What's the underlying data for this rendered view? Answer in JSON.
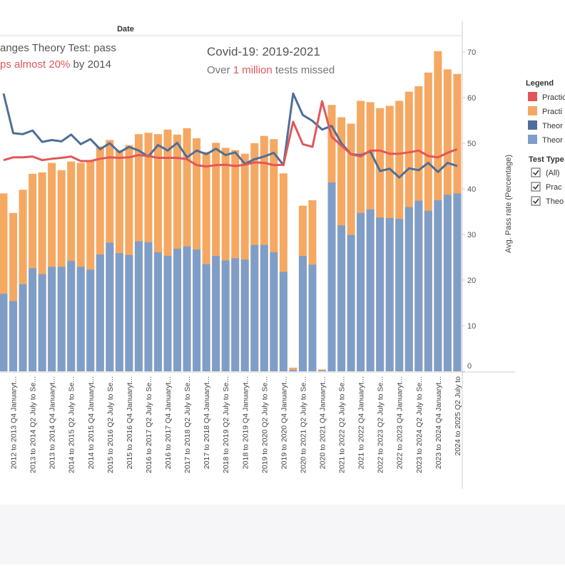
{
  "chart_data": {
    "type": "bar",
    "x_label": "Date",
    "y_label": "Avg. Pass rate (Percentage)",
    "legend_title": "Legend",
    "annotations": [
      {
        "lines": [
          [
            {
              "text": "anges Theory Test: pass",
              "color": "#555555"
            }
          ],
          [
            {
              "text": "ps almost 20%",
              "color": "#e15759"
            },
            {
              "text": " by 2014",
              "color": "#555555"
            }
          ]
        ]
      },
      {
        "lines": [
          [
            {
              "text": "Covid-19: 2019-2021",
              "color": "#555555"
            }
          ],
          [
            {
              "text": "Over ",
              "color": "#777777"
            },
            {
              "text": "1 million",
              "color": "#e15759"
            },
            {
              "text": " tests missed",
              "color": "#777777"
            }
          ]
        ]
      }
    ],
    "categories": [
      null,
      "2012 to 2013 Q4 Januaryt...",
      null,
      "2013 to 2014 Q2 July to Se...",
      null,
      "2013 to 2014 Q4 Januaryt...",
      null,
      "2014 to 2015 Q2 July to Se...",
      null,
      "2014 to 2015 Q4 Januaryt...",
      null,
      "2015 to 2016 Q2 July to Se...",
      null,
      "2015 to 2016 Q4 Januaryt...",
      null,
      "2016 to 2017 Q2 July to Se...",
      null,
      "2016 to 2017 Q4 Januaryt...",
      null,
      "2017 to 2018 Q2 July to Se...",
      null,
      "2017 to 2018 Q4 Januaryt...",
      null,
      "2018 to 2019 Q2 July to Se...",
      null,
      "2018 to 2019 Q4 Januaryt...",
      null,
      "2019 to 2020 Q2 July to Se...",
      null,
      "2019 to 2020 Q4 Januaryt...",
      null,
      "2020 to 2021 Q2 July to Se...",
      null,
      "2020 to 2021 Q4 Januaryt...",
      null,
      "2021 to 2022 Q2 July to Se...",
      null,
      "2021 to 2022 Q4 Januaryt...",
      null,
      "2022 to 2023 Q2 July to Se...",
      null,
      "2022 to 2023 Q4 Januaryt...",
      null,
      "2023 to 2024 Q2 July to Se...",
      null,
      "2023 to 2024 Q4 Januaryt...",
      null,
      "2024 to 2025 Q2 July to"
    ],
    "series": [
      {
        "name": "Practic",
        "type": "line",
        "color": "#e15759",
        "values": [
          46.3,
          46.9,
          46.9,
          47.1,
          46.3,
          46.6,
          46.8,
          47.1,
          46.1,
          46.1,
          46.6,
          46.9,
          46.8,
          46.9,
          47.4,
          47.2,
          46.8,
          46.8,
          46.8,
          46.5,
          45.2,
          44.9,
          45.2,
          45.3,
          45.0,
          45.3,
          45.8,
          45.7,
          45.2,
          45.3,
          54.7,
          49.8,
          49.2,
          59.2,
          51.4,
          49.5,
          47.6,
          47.1,
          48.4,
          48.4,
          47.7,
          47.7,
          48.0,
          48.4,
          47.2,
          46.9,
          47.9,
          48.7
        ]
      },
      {
        "name": "Practi",
        "type": "bar",
        "color": "#f5a862",
        "values": [
          39.0,
          34.7,
          39.8,
          43.3,
          43.6,
          45.7,
          44.1,
          46.0,
          45.7,
          46.3,
          49.3,
          50.7,
          48.5,
          49.6,
          52.0,
          52.3,
          52.0,
          53.0,
          51.9,
          53.3,
          51.1,
          48.1,
          50.1,
          49.0,
          48.5,
          47.7,
          50.0,
          51.6,
          50.9,
          43.4,
          0.8,
          36.3,
          37.5,
          0.4,
          58.4,
          55.7,
          54.3,
          59.3,
          59.0,
          57.7,
          58.2,
          59.3,
          61.3,
          62.5,
          65.5,
          70.2,
          66.2,
          65.2
        ]
      },
      {
        "name": "Theor",
        "type": "line",
        "color": "#4e6f99",
        "values": [
          60.9,
          52.2,
          52.0,
          52.8,
          50.3,
          50.7,
          50.4,
          51.9,
          49.8,
          50.9,
          48.7,
          50.0,
          48.0,
          49.2,
          48.4,
          47.1,
          49.6,
          48.4,
          50.1,
          46.9,
          48.4,
          47.6,
          48.8,
          47.4,
          48.0,
          45.5,
          46.5,
          47.1,
          47.9,
          45.2,
          60.9,
          56.2,
          54.9,
          53.0,
          53.8,
          50.0,
          47.6,
          47.4,
          48.2,
          43.9,
          44.4,
          42.5,
          44.5,
          44.1,
          45.7,
          43.7,
          45.7,
          45.0
        ]
      },
      {
        "name": "Theor",
        "type": "bar",
        "color": "#7f9ec7",
        "values": [
          17.0,
          15.4,
          19.1,
          22.6,
          21.3,
          22.9,
          22.9,
          24.2,
          22.9,
          22.3,
          25.6,
          28.2,
          25.9,
          25.5,
          28.5,
          28.3,
          26.1,
          25.3,
          26.9,
          27.4,
          26.7,
          23.5,
          25.3,
          24.3,
          24.8,
          24.5,
          27.7,
          27.7,
          26.1,
          21.8,
          0.3,
          25.3,
          23.4,
          0.2,
          41.4,
          32.0,
          29.9,
          34.7,
          35.5,
          33.7,
          33.6,
          33.4,
          36.0,
          37.4,
          35.2,
          37.5,
          38.7,
          39.0
        ]
      }
    ],
    "ylim": [
      0,
      70
    ],
    "yticks": [
      0,
      10,
      20,
      30,
      40,
      50,
      60,
      70
    ],
    "legend_position": "right"
  },
  "filter": {
    "title": "Test Type",
    "items": [
      "(All)",
      "Prac",
      "Theo"
    ]
  }
}
